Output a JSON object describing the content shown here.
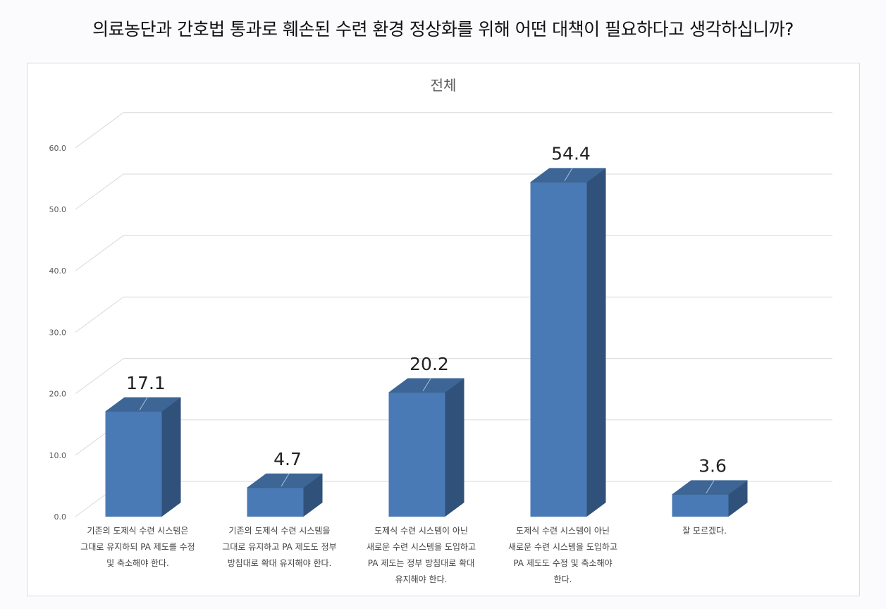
{
  "question": "의료농단과 간호법 통과로 훼손된 수련 환경 정상화를 위해 어떤 대책이 필요하다고 생각하십니까?",
  "chart_data": {
    "type": "bar",
    "title": "전체",
    "categories": [
      "기존의 도제식 수련 시스템은 그대로 유지하되 PA 제도를 수정 및 축소해야 한다.",
      "기존의 도제식 수련 시스템을 그대로 유지하고 PA 제도도 정부 방침대로 확대 유지해야 한다.",
      "도제식 수련 시스템이 아닌 새로운 수련 시스템을 도입하고 PA 제도는 정부 방침대로 확대 유지해야 한다.",
      "도제식 수련 시스템이 아닌 새로운 수련 시스템을 도입하고 PA 제도도 수정 및 축소해야 한다.",
      "잘 모르겠다."
    ],
    "category_lines": [
      [
        "기존의 도제식 수련 시스템은",
        "그대로 유지하되 PA 제도를 수정",
        "및 축소해야 한다."
      ],
      [
        "기존의 도제식 수련 시스템을",
        "그대로 유지하고 PA 제도도 정부",
        "방침대로 확대 유지해야 한다."
      ],
      [
        "도제식 수련 시스템이 아닌",
        "새로운 수련 시스템을 도입하고",
        "PA 제도는 정부 방침대로 확대",
        "유지해야 한다."
      ],
      [
        "도제식 수련 시스템이 아닌",
        "새로운 수련 시스템을 도입하고",
        "PA 제도도 수정 및 축소해야",
        "한다."
      ],
      [
        "잘 모르겠다."
      ]
    ],
    "values": [
      17.1,
      4.7,
      20.2,
      54.4,
      3.6
    ],
    "value_labels": [
      "17.1",
      "4.7",
      "20.2",
      "54.4",
      "3.6"
    ],
    "ylim": [
      0,
      60
    ],
    "yticks": [
      "0.0",
      "10.0",
      "20.0",
      "30.0",
      "40.0",
      "50.0",
      "60.0"
    ],
    "grid": true,
    "style": "3d",
    "colors": {
      "front": "#4a7ab5",
      "top": "#3d6697",
      "side": "#30517a",
      "grid": "#d9d9d9"
    }
  }
}
